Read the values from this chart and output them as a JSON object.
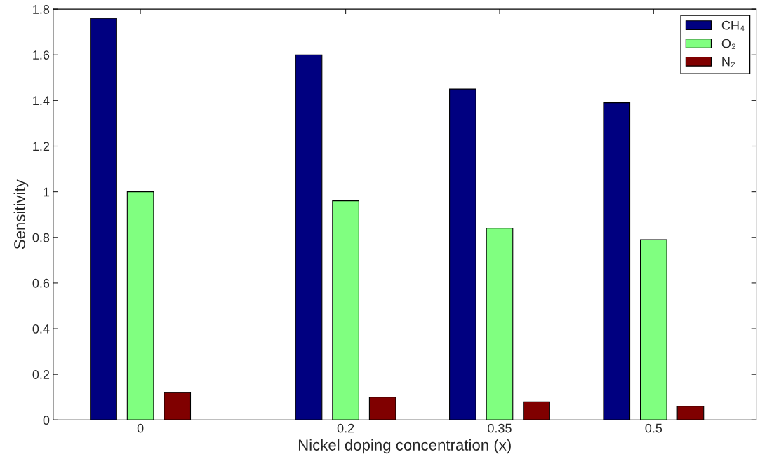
{
  "chart_data": {
    "type": "bar",
    "xlabel": "Nickel doping concentration (x)",
    "ylabel": "Sensitivity",
    "x": [
      0,
      0.2,
      0.35,
      0.5
    ],
    "series": [
      {
        "name": "CH₄",
        "color": "#000080",
        "values": [
          1.76,
          1.6,
          1.45,
          1.39
        ]
      },
      {
        "name": "O₂",
        "color": "#80ff80",
        "values": [
          1.0,
          0.96,
          0.84,
          0.79
        ]
      },
      {
        "name": "N₂",
        "color": "#800000",
        "values": [
          0.12,
          0.1,
          0.08,
          0.06
        ]
      }
    ],
    "xlim": [
      -0.085,
      0.6
    ],
    "xticks": [
      0,
      0.2,
      0.35,
      0.5
    ],
    "ylim": [
      0,
      1.8
    ],
    "yticks": [
      0,
      0.2,
      0.4,
      0.6,
      0.8,
      1,
      1.2,
      1.4,
      1.6,
      1.8
    ],
    "grid": false,
    "legend": "top right"
  }
}
